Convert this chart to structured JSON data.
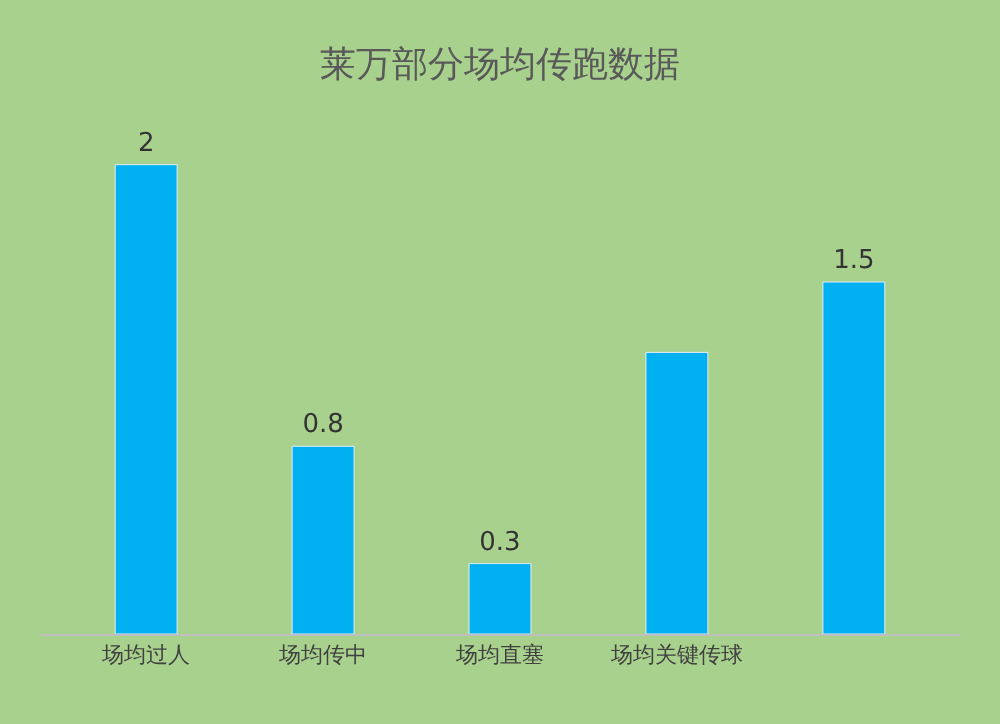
{
  "chart_data": {
    "type": "bar",
    "title": "莱万部分场均传跑数据",
    "categories": [
      "场均过人",
      "场均传中",
      "场均直塞",
      "场均关键传球",
      null
    ],
    "values": [
      2,
      0.8,
      0.3,
      1.2,
      1.5
    ],
    "value_labels": [
      "2",
      "0.8",
      "0.3",
      null,
      "1.5"
    ],
    "color": "#00b0f0",
    "grid": false
  }
}
